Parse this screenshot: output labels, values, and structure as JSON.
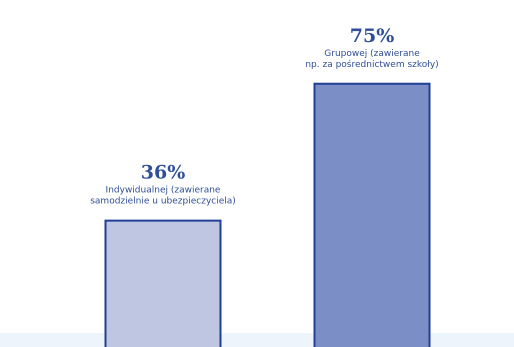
{
  "colors": {
    "text": "#2f4f98",
    "bar_light": "#bfc6e2",
    "bar_dark": "#7b8fc6",
    "bar_border": "#203f96",
    "baseline_band": "#eef4fb"
  },
  "chart_data": {
    "type": "bar",
    "title": "",
    "xlabel": "",
    "ylabel": "",
    "ylim": [
      0,
      100
    ],
    "grid": false,
    "legend": "none",
    "bars": [
      {
        "value": 36,
        "value_label": "36%",
        "label_lines": [
          "Indywidualnej (zawierane",
          "samodzielnie u ubezpieczyciela)"
        ],
        "color": "#bfc6e2"
      },
      {
        "value": 75,
        "value_label": "75%",
        "label_lines": [
          "Grupowej (zawierane",
          "np. za pośrednictwem szkoły)"
        ],
        "color": "#7b8fc6"
      }
    ]
  }
}
